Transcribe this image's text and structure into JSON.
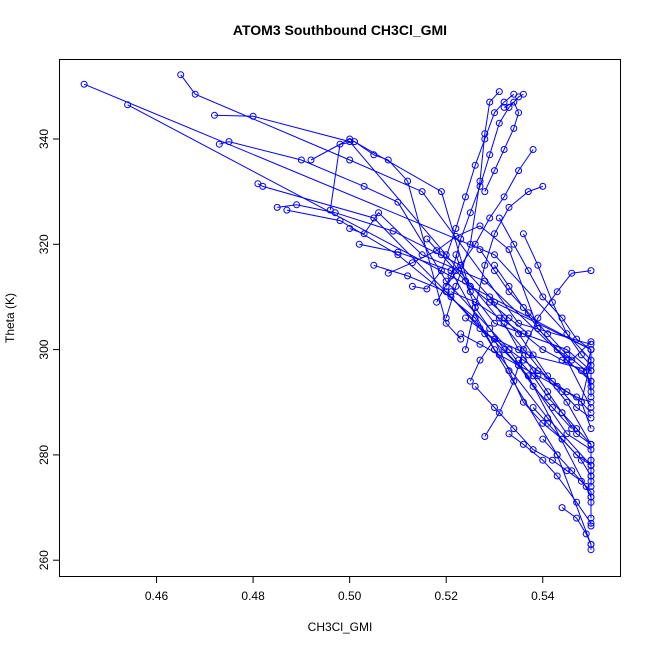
{
  "chart_data": {
    "type": "line",
    "title": "ATOM3 Southbound CH3Cl_GMI",
    "xlabel": "CH3Cl_GMI",
    "ylabel": "Theta (K)",
    "xlim": [
      0.44,
      0.556
    ],
    "ylim": [
      257,
      355
    ],
    "xticks": [
      0.46,
      0.48,
      0.5,
      0.52,
      0.54
    ],
    "xtick_labels": [
      "0.46",
      "0.48",
      "0.50",
      "0.52",
      "0.54"
    ],
    "yticks": [
      260,
      280,
      300,
      320,
      340
    ],
    "ytick_labels": [
      "260",
      "280",
      "300",
      "320",
      "340"
    ],
    "grid": false,
    "legend": "none",
    "series_color": "#0000ff",
    "marker": "open-circle",
    "series": [
      {
        "x": [
          0.445,
          0.53,
          0.55,
          0.548,
          0.55
        ],
        "y": [
          350.4,
          318,
          298,
          290,
          285
        ]
      },
      {
        "x": [
          0.454,
          0.525,
          0.55,
          0.549,
          0.55
        ],
        "y": [
          346.5,
          312,
          300,
          296,
          292
        ]
      },
      {
        "x": [
          0.465,
          0.468,
          0.5,
          0.515,
          0.535,
          0.55
        ],
        "y": [
          352.2,
          348.5,
          336,
          330,
          305,
          301
        ]
      },
      {
        "x": [
          0.472,
          0.48,
          0.5,
          0.52,
          0.545,
          0.55,
          0.55
        ],
        "y": [
          344.5,
          344.3,
          339.5,
          318,
          290,
          282,
          278
        ]
      },
      {
        "x": [
          0.473,
          0.475,
          0.49,
          0.503,
          0.51,
          0.52,
          0.533,
          0.545,
          0.55
        ],
        "y": [
          339,
          339.5,
          336,
          331,
          328,
          313,
          300,
          284,
          281
        ]
      },
      {
        "x": [
          0.481,
          0.482,
          0.505,
          0.521,
          0.537,
          0.55,
          0.55
        ],
        "y": [
          331.5,
          331,
          325,
          310,
          295,
          272,
          268
        ]
      },
      {
        "x": [
          0.485,
          0.489,
          0.497,
          0.509,
          0.523,
          0.53,
          0.55,
          0.55
        ],
        "y": [
          327,
          327.5,
          326,
          322.5,
          316,
          309,
          300,
          291
        ]
      },
      {
        "x": [
          0.487,
          0.498,
          0.51,
          0.526,
          0.543,
          0.55
        ],
        "y": [
          326.5,
          324.5,
          318,
          306,
          280,
          263
        ]
      },
      {
        "x": [
          0.492,
          0.5,
          0.519,
          0.525,
          0.53,
          0.545,
          0.55
        ],
        "y": [
          336,
          340,
          330,
          311,
          305,
          300,
          296
        ]
      },
      {
        "x": [
          0.496,
          0.498,
          0.501,
          0.505,
          0.508,
          0.512,
          0.52,
          0.523
        ],
        "y": [
          326.5,
          339,
          339.5,
          337,
          336,
          332,
          305,
          302
        ]
      },
      {
        "x": [
          0.5,
          0.503,
          0.506,
          0.515,
          0.528,
          0.545,
          0.55
        ],
        "y": [
          323,
          322,
          326,
          318,
          313,
          298,
          294
        ]
      },
      {
        "x": [
          0.502,
          0.51,
          0.521,
          0.53,
          0.541,
          0.55,
          0.55
        ],
        "y": [
          320,
          318.5,
          315,
          300,
          287,
          278,
          274
        ]
      },
      {
        "x": [
          0.505,
          0.512,
          0.52,
          0.528,
          0.537,
          0.55
        ],
        "y": [
          316,
          314,
          311,
          303,
          299,
          296
        ]
      },
      {
        "x": [
          0.508,
          0.513,
          0.518,
          0.522,
          0.527,
          0.533,
          0.539,
          0.545,
          0.55
        ],
        "y": [
          314.5,
          316.5,
          318.8,
          321.5,
          323.5,
          319,
          304,
          298,
          289
        ]
      },
      {
        "x": [
          0.513,
          0.516,
          0.519,
          0.522,
          0.524,
          0.526,
          0.528,
          0.53,
          0.532,
          0.534
        ],
        "y": [
          312,
          311.5,
          315,
          323,
          329,
          335,
          340,
          345,
          347,
          348.5
        ]
      },
      {
        "x": [
          0.518,
          0.521,
          0.523,
          0.525,
          0.527,
          0.529,
          0.531,
          0.533,
          0.535,
          0.536
        ],
        "y": [
          309,
          314,
          321,
          326,
          331,
          337,
          343,
          346,
          348,
          348.5
        ]
      },
      {
        "x": [
          0.52,
          0.522,
          0.525,
          0.527,
          0.528,
          0.529,
          0.531
        ],
        "y": [
          306,
          312,
          320,
          332,
          341,
          347,
          349
        ]
      },
      {
        "x": [
          0.524,
          0.526,
          0.528,
          0.53,
          0.533,
          0.537,
          0.54
        ],
        "y": [
          300,
          308,
          316,
          322,
          327,
          330,
          331
        ]
      },
      {
        "x": [
          0.522,
          0.524,
          0.526,
          0.529,
          0.532,
          0.535,
          0.538,
          0.542,
          0.546
        ],
        "y": [
          318,
          313,
          308,
          304,
          300,
          297,
          293,
          289,
          285
        ]
      },
      {
        "x": [
          0.525,
          0.527,
          0.53,
          0.533,
          0.536,
          0.54,
          0.544,
          0.548,
          0.55
        ],
        "y": [
          294,
          298,
          302,
          296,
          290,
          286,
          283,
          279,
          276
        ]
      },
      {
        "x": [
          0.526,
          0.53,
          0.534,
          0.538,
          0.542,
          0.545,
          0.548,
          0.55,
          0.55
        ],
        "y": [
          293,
          289,
          285,
          281,
          279,
          277,
          275,
          273,
          271
        ]
      },
      {
        "x": [
          0.528,
          0.531,
          0.534,
          0.536,
          0.539,
          0.543,
          0.546,
          0.55
        ],
        "y": [
          283.5,
          288,
          294,
          300,
          306,
          311,
          314.5,
          315
        ]
      },
      {
        "x": [
          0.533,
          0.536,
          0.54,
          0.543,
          0.547,
          0.55,
          0.55
        ],
        "y": [
          284,
          282,
          279,
          276,
          271,
          267,
          266.5
        ]
      },
      {
        "x": [
          0.532,
          0.535,
          0.538,
          0.541,
          0.544,
          0.547,
          0.55,
          0.55,
          0.55
        ],
        "y": [
          305,
          300,
          296,
          292,
          288,
          285,
          282,
          279,
          275
        ]
      },
      {
        "x": [
          0.529,
          0.532,
          0.535,
          0.538,
          0.541,
          0.544,
          0.547,
          0.55
        ],
        "y": [
          310,
          306,
          303,
          299,
          295,
          292,
          289,
          287
        ]
      },
      {
        "x": [
          0.53,
          0.533,
          0.536,
          0.539,
          0.543,
          0.546,
          0.55
        ],
        "y": [
          316,
          312,
          308,
          304,
          300,
          298,
          301.5
        ]
      },
      {
        "x": [
          0.535,
          0.538,
          0.541,
          0.544,
          0.547,
          0.55,
          0.55,
          0.55
        ],
        "y": [
          298,
          295,
          291,
          288,
          284,
          282,
          279,
          277
        ]
      },
      {
        "x": [
          0.523,
          0.527,
          0.531,
          0.535,
          0.539,
          0.543,
          0.547,
          0.55
        ],
        "y": [
          303,
          301,
          299,
          297,
          295,
          293,
          291,
          290
        ]
      },
      {
        "x": [
          0.521,
          0.526,
          0.531,
          0.536,
          0.54,
          0.544,
          0.548,
          0.55
        ],
        "y": [
          311,
          309,
          306,
          303,
          300,
          298,
          296,
          294
        ]
      },
      {
        "x": [
          0.536,
          0.539,
          0.542,
          0.545,
          0.548,
          0.55
        ],
        "y": [
          322,
          316,
          309,
          303,
          299,
          297
        ]
      },
      {
        "x": [
          0.527,
          0.53,
          0.533,
          0.537,
          0.541,
          0.545,
          0.549,
          0.55
        ],
        "y": [
          319,
          315,
          311,
          307,
          303,
          299,
          296,
          293
        ]
      },
      {
        "x": [
          0.531,
          0.534,
          0.537,
          0.54,
          0.544,
          0.547,
          0.55
        ],
        "y": [
          325,
          320,
          315,
          310,
          306,
          302,
          300
        ]
      },
      {
        "x": [
          0.538,
          0.541,
          0.544,
          0.547,
          0.55,
          0.55
        ],
        "y": [
          289,
          286,
          283,
          280,
          278,
          276
        ]
      },
      {
        "x": [
          0.54,
          0.543,
          0.546,
          0.549,
          0.55
        ],
        "y": [
          283,
          280,
          277,
          274,
          272
        ]
      },
      {
        "x": [
          0.52,
          0.523,
          0.526,
          0.529,
          0.532,
          0.535,
          0.538
        ],
        "y": [
          312,
          316,
          320,
          325,
          329,
          334,
          338
        ]
      },
      {
        "x": [
          0.528,
          0.53,
          0.532,
          0.534,
          0.535,
          0.534,
          0.532
        ],
        "y": [
          330,
          334,
          338,
          342,
          345,
          347,
          346
        ]
      },
      {
        "x": [
          0.516,
          0.519,
          0.522,
          0.525,
          0.529,
          0.533,
          0.537
        ],
        "y": [
          321,
          318,
          315,
          312,
          309,
          306,
          303
        ]
      },
      {
        "x": [
          0.524,
          0.527,
          0.53,
          0.533,
          0.536,
          0.539,
          0.542,
          0.545,
          0.548,
          0.55
        ],
        "y": [
          306,
          304,
          302,
          300,
          298,
          296,
          294,
          292,
          290,
          288
        ]
      },
      {
        "x": [
          0.544,
          0.547,
          0.549,
          0.55,
          0.55
        ],
        "y": [
          270,
          268,
          265,
          263,
          262
        ]
      }
    ]
  }
}
